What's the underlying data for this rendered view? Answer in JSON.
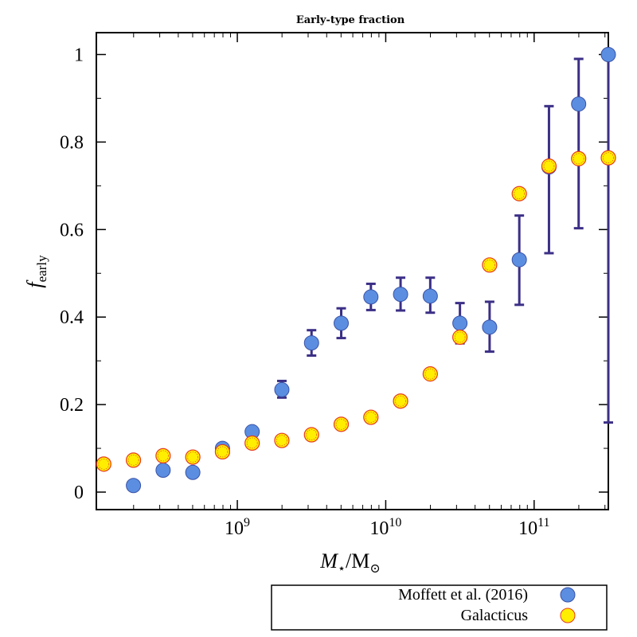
{
  "chart_data": {
    "type": "scatter",
    "title": "Early-type fraction",
    "xlabel": "M⋆/M⊙",
    "ylabel": "f_early",
    "xscale": "log",
    "xlim_log10": [
      8.05,
      11.5
    ],
    "ylim": [
      -0.04,
      1.05
    ],
    "x_ticks": [
      {
        "log10": 9,
        "base": "10",
        "exp": "9"
      },
      {
        "log10": 10,
        "base": "10",
        "exp": "10"
      },
      {
        "log10": 11,
        "base": "10",
        "exp": "11"
      }
    ],
    "y_ticks": [
      {
        "value": 0,
        "label": "0"
      },
      {
        "value": 0.2,
        "label": "0.2"
      },
      {
        "value": 0.4,
        "label": "0.4"
      },
      {
        "value": 0.6,
        "label": "0.6"
      },
      {
        "value": 0.8,
        "label": "0.8"
      },
      {
        "value": 1,
        "label": "1"
      }
    ],
    "legend_position": "bottom-right-outside",
    "series": [
      {
        "name": "Moffett et al. (2016)",
        "marker_fill": "#5b8ee0",
        "marker_stroke": "#3a52a8",
        "error_color": "#3b2f86",
        "points": [
          {
            "log10_mass": 8.3,
            "y": 0.015,
            "ylo": null,
            "yhi": null
          },
          {
            "log10_mass": 8.5,
            "y": 0.05,
            "ylo": null,
            "yhi": null
          },
          {
            "log10_mass": 8.7,
            "y": 0.045,
            "ylo": null,
            "yhi": null
          },
          {
            "log10_mass": 8.9,
            "y": 0.1,
            "ylo": null,
            "yhi": null
          },
          {
            "log10_mass": 9.1,
            "y": 0.138,
            "ylo": null,
            "yhi": null
          },
          {
            "log10_mass": 9.3,
            "y": 0.234,
            "ylo": 0.216,
            "yhi": 0.254
          },
          {
            "log10_mass": 9.5,
            "y": 0.341,
            "ylo": 0.312,
            "yhi": 0.37
          },
          {
            "log10_mass": 9.7,
            "y": 0.386,
            "ylo": 0.352,
            "yhi": 0.42
          },
          {
            "log10_mass": 9.9,
            "y": 0.446,
            "ylo": 0.416,
            "yhi": 0.476
          },
          {
            "log10_mass": 10.1,
            "y": 0.452,
            "ylo": 0.415,
            "yhi": 0.49
          },
          {
            "log10_mass": 10.3,
            "y": 0.448,
            "ylo": 0.41,
            "yhi": 0.49
          },
          {
            "log10_mass": 10.5,
            "y": 0.386,
            "ylo": 0.34,
            "yhi": 0.432
          },
          {
            "log10_mass": 10.7,
            "y": 0.377,
            "ylo": 0.321,
            "yhi": 0.435
          },
          {
            "log10_mass": 10.9,
            "y": 0.531,
            "ylo": 0.428,
            "yhi": 0.632
          },
          {
            "log10_mass": 11.1,
            "y": 0.743,
            "ylo": 0.546,
            "yhi": 0.882
          },
          {
            "log10_mass": 11.3,
            "y": 0.887,
            "ylo": 0.603,
            "yhi": 0.99
          },
          {
            "log10_mass": 11.5,
            "y": 1.0,
            "ylo": 0.159,
            "yhi": 1.0
          }
        ]
      },
      {
        "name": "Galacticus",
        "marker_fill": "#ffee00",
        "marker_stroke": "#e63a1e",
        "points": [
          {
            "log10_mass": 8.1,
            "y": 0.064
          },
          {
            "log10_mass": 8.3,
            "y": 0.073
          },
          {
            "log10_mass": 8.5,
            "y": 0.083
          },
          {
            "log10_mass": 8.7,
            "y": 0.08
          },
          {
            "log10_mass": 8.9,
            "y": 0.092
          },
          {
            "log10_mass": 9.1,
            "y": 0.112
          },
          {
            "log10_mass": 9.3,
            "y": 0.118
          },
          {
            "log10_mass": 9.5,
            "y": 0.131
          },
          {
            "log10_mass": 9.7,
            "y": 0.155
          },
          {
            "log10_mass": 9.9,
            "y": 0.171
          },
          {
            "log10_mass": 10.1,
            "y": 0.208
          },
          {
            "log10_mass": 10.3,
            "y": 0.27
          },
          {
            "log10_mass": 10.5,
            "y": 0.354
          },
          {
            "log10_mass": 10.7,
            "y": 0.519
          },
          {
            "log10_mass": 10.9,
            "y": 0.682
          },
          {
            "log10_mass": 11.1,
            "y": 0.745
          },
          {
            "log10_mass": 11.3,
            "y": 0.762
          },
          {
            "log10_mass": 11.5,
            "y": 0.764
          }
        ]
      }
    ]
  }
}
